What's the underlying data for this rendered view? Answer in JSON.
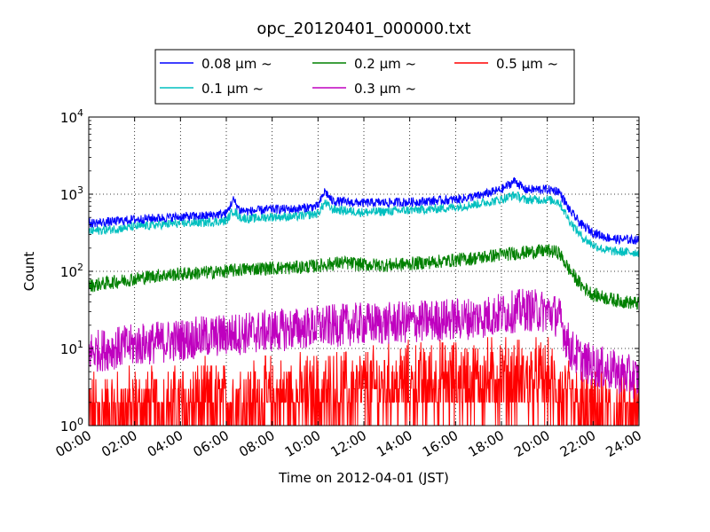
{
  "chart_data": {
    "type": "line",
    "title": "opc_20120401_000000.txt",
    "xlabel": "Time on 2012-04-01 (JST)",
    "ylabel": "Count",
    "x_unit": "hours",
    "xlim": [
      0,
      24
    ],
    "ylim": [
      1,
      10000
    ],
    "yscale": "log",
    "grid": true,
    "legend_position": "top-center",
    "x_ticks": [
      "00:00",
      "02:00",
      "04:00",
      "06:00",
      "08:00",
      "10:00",
      "12:00",
      "14:00",
      "16:00",
      "18:00",
      "20:00",
      "22:00",
      "24:00"
    ],
    "y_ticks": [
      {
        "value": 1,
        "base": "10",
        "exp": "0"
      },
      {
        "value": 10,
        "base": "10",
        "exp": "1"
      },
      {
        "value": 100,
        "base": "10",
        "exp": "2"
      },
      {
        "value": 1000,
        "base": "10",
        "exp": "3"
      },
      {
        "value": 10000,
        "base": "10",
        "exp": "4"
      }
    ],
    "series": [
      {
        "name": "0.08 μm ~",
        "color": "#0000ff",
        "x": [
          0,
          1,
          2,
          3,
          4,
          5,
          6,
          6.3,
          6.6,
          7,
          8,
          9,
          10,
          10.3,
          10.6,
          11,
          11.5,
          12,
          13,
          14,
          15,
          16,
          17,
          18,
          18.6,
          19,
          20,
          20.5,
          21,
          21.5,
          22,
          22.5,
          23,
          24
        ],
        "y": [
          420,
          440,
          470,
          490,
          510,
          520,
          560,
          850,
          620,
          600,
          640,
          640,
          700,
          1100,
          820,
          800,
          780,
          770,
          780,
          790,
          820,
          850,
          950,
          1150,
          1500,
          1150,
          1150,
          1100,
          600,
          400,
          320,
          280,
          260,
          255
        ]
      },
      {
        "name": "0.1 μm ~",
        "color": "#00bfbf",
        "x": [
          0,
          1,
          2,
          3,
          4,
          5,
          6,
          6.3,
          6.6,
          7,
          8,
          9,
          10,
          10.3,
          10.6,
          11,
          11.5,
          12,
          13,
          14,
          15,
          16,
          17,
          18,
          18.6,
          19,
          20,
          20.5,
          21,
          21.5,
          22,
          22.5,
          23,
          24
        ],
        "y": [
          330,
          350,
          380,
          400,
          420,
          430,
          450,
          620,
          500,
          480,
          510,
          510,
          560,
          780,
          640,
          620,
          600,
          580,
          600,
          620,
          640,
          680,
          750,
          850,
          980,
          850,
          850,
          800,
          440,
          280,
          220,
          190,
          180,
          175
        ]
      },
      {
        "name": "0.2 μm ~",
        "color": "#008000",
        "x": [
          0,
          1,
          2,
          3,
          4,
          5,
          6,
          7,
          8,
          9,
          10,
          11,
          12,
          13,
          14,
          15,
          16,
          17,
          18,
          19,
          20,
          20.5,
          21,
          21.5,
          22,
          23,
          24
        ],
        "y": [
          65,
          72,
          80,
          88,
          92,
          96,
          100,
          108,
          110,
          112,
          118,
          130,
          122,
          120,
          125,
          132,
          140,
          150,
          165,
          175,
          185,
          175,
          100,
          65,
          50,
          42,
          38
        ]
      },
      {
        "name": "0.3 μm ~",
        "color": "#bf00bf",
        "x": [
          0,
          1,
          2,
          3,
          4,
          5,
          6,
          7,
          8,
          9,
          10,
          11,
          12,
          13,
          14,
          15,
          16,
          17,
          18,
          19,
          20,
          20.5,
          21,
          21.5,
          22,
          23,
          24
        ],
        "y": [
          9,
          10,
          11,
          12,
          13,
          14,
          15,
          16,
          17,
          18,
          19,
          20,
          21,
          21,
          22,
          23,
          24,
          25,
          28,
          32,
          30,
          26,
          10,
          7,
          6,
          5,
          4
        ]
      },
      {
        "name": "0.5 μm ~",
        "color": "#ff0000",
        "x": [
          0,
          2,
          4,
          6,
          8,
          10,
          12,
          14,
          16,
          18,
          20,
          21,
          22,
          24
        ],
        "y": [
          1.2,
          1.3,
          1.5,
          1.6,
          1.8,
          2,
          2.4,
          2.8,
          3,
          3.3,
          3,
          1.5,
          1.2,
          1.1
        ]
      }
    ]
  }
}
